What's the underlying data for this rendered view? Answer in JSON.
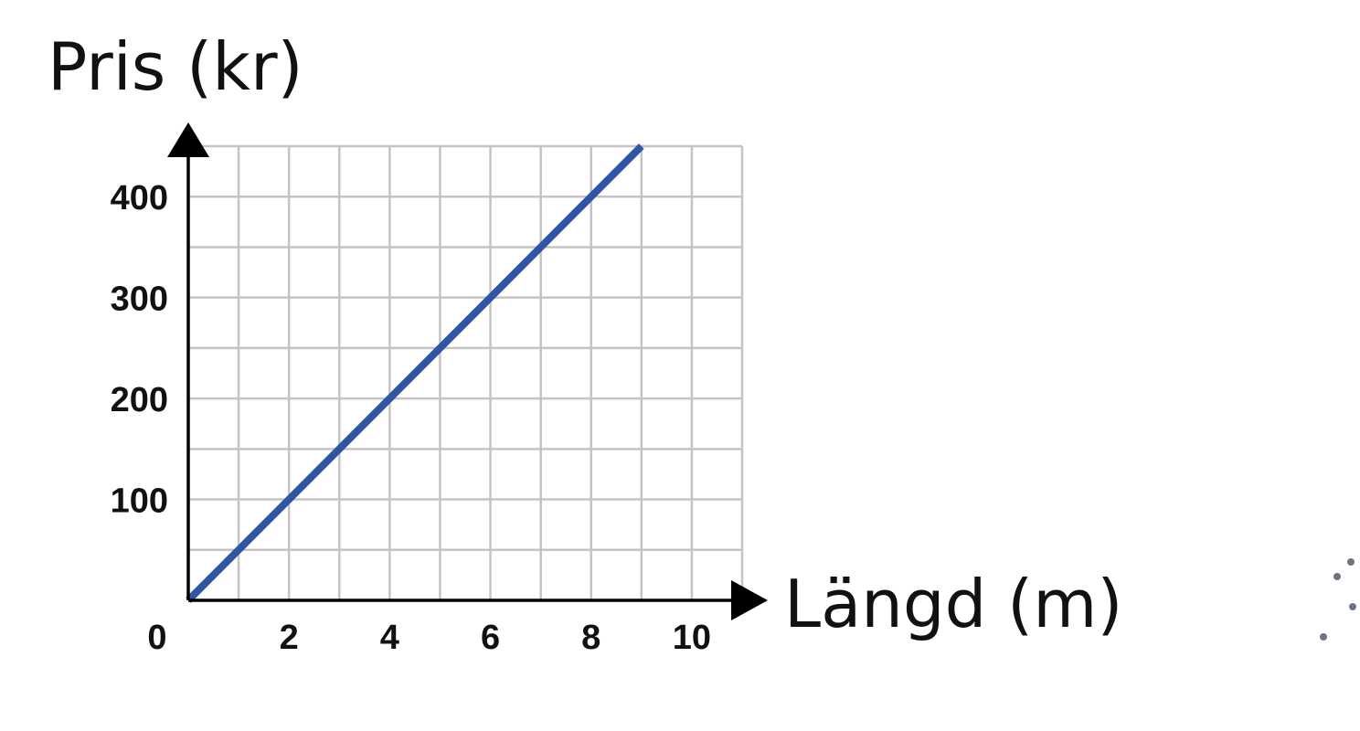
{
  "chart_data": {
    "type": "line",
    "title": "",
    "xlabel": "Längd (m)",
    "ylabel": "Pris (kr)",
    "xlim": [
      0,
      11
    ],
    "ylim": [
      0,
      450
    ],
    "grid": true,
    "x_tick_labels": [
      "0",
      "2",
      "4",
      "6",
      "8",
      "10"
    ],
    "x_tick_values": [
      0,
      2,
      4,
      6,
      8,
      10
    ],
    "y_tick_labels": [
      "100",
      "200",
      "300",
      "400"
    ],
    "y_tick_values": [
      100,
      200,
      300,
      400
    ],
    "series": [
      {
        "x": [
          0,
          9
        ],
        "y": [
          0,
          450
        ],
        "color": "#2f55a4"
      }
    ]
  },
  "decor": {
    "dot_color": "#6b7480"
  }
}
